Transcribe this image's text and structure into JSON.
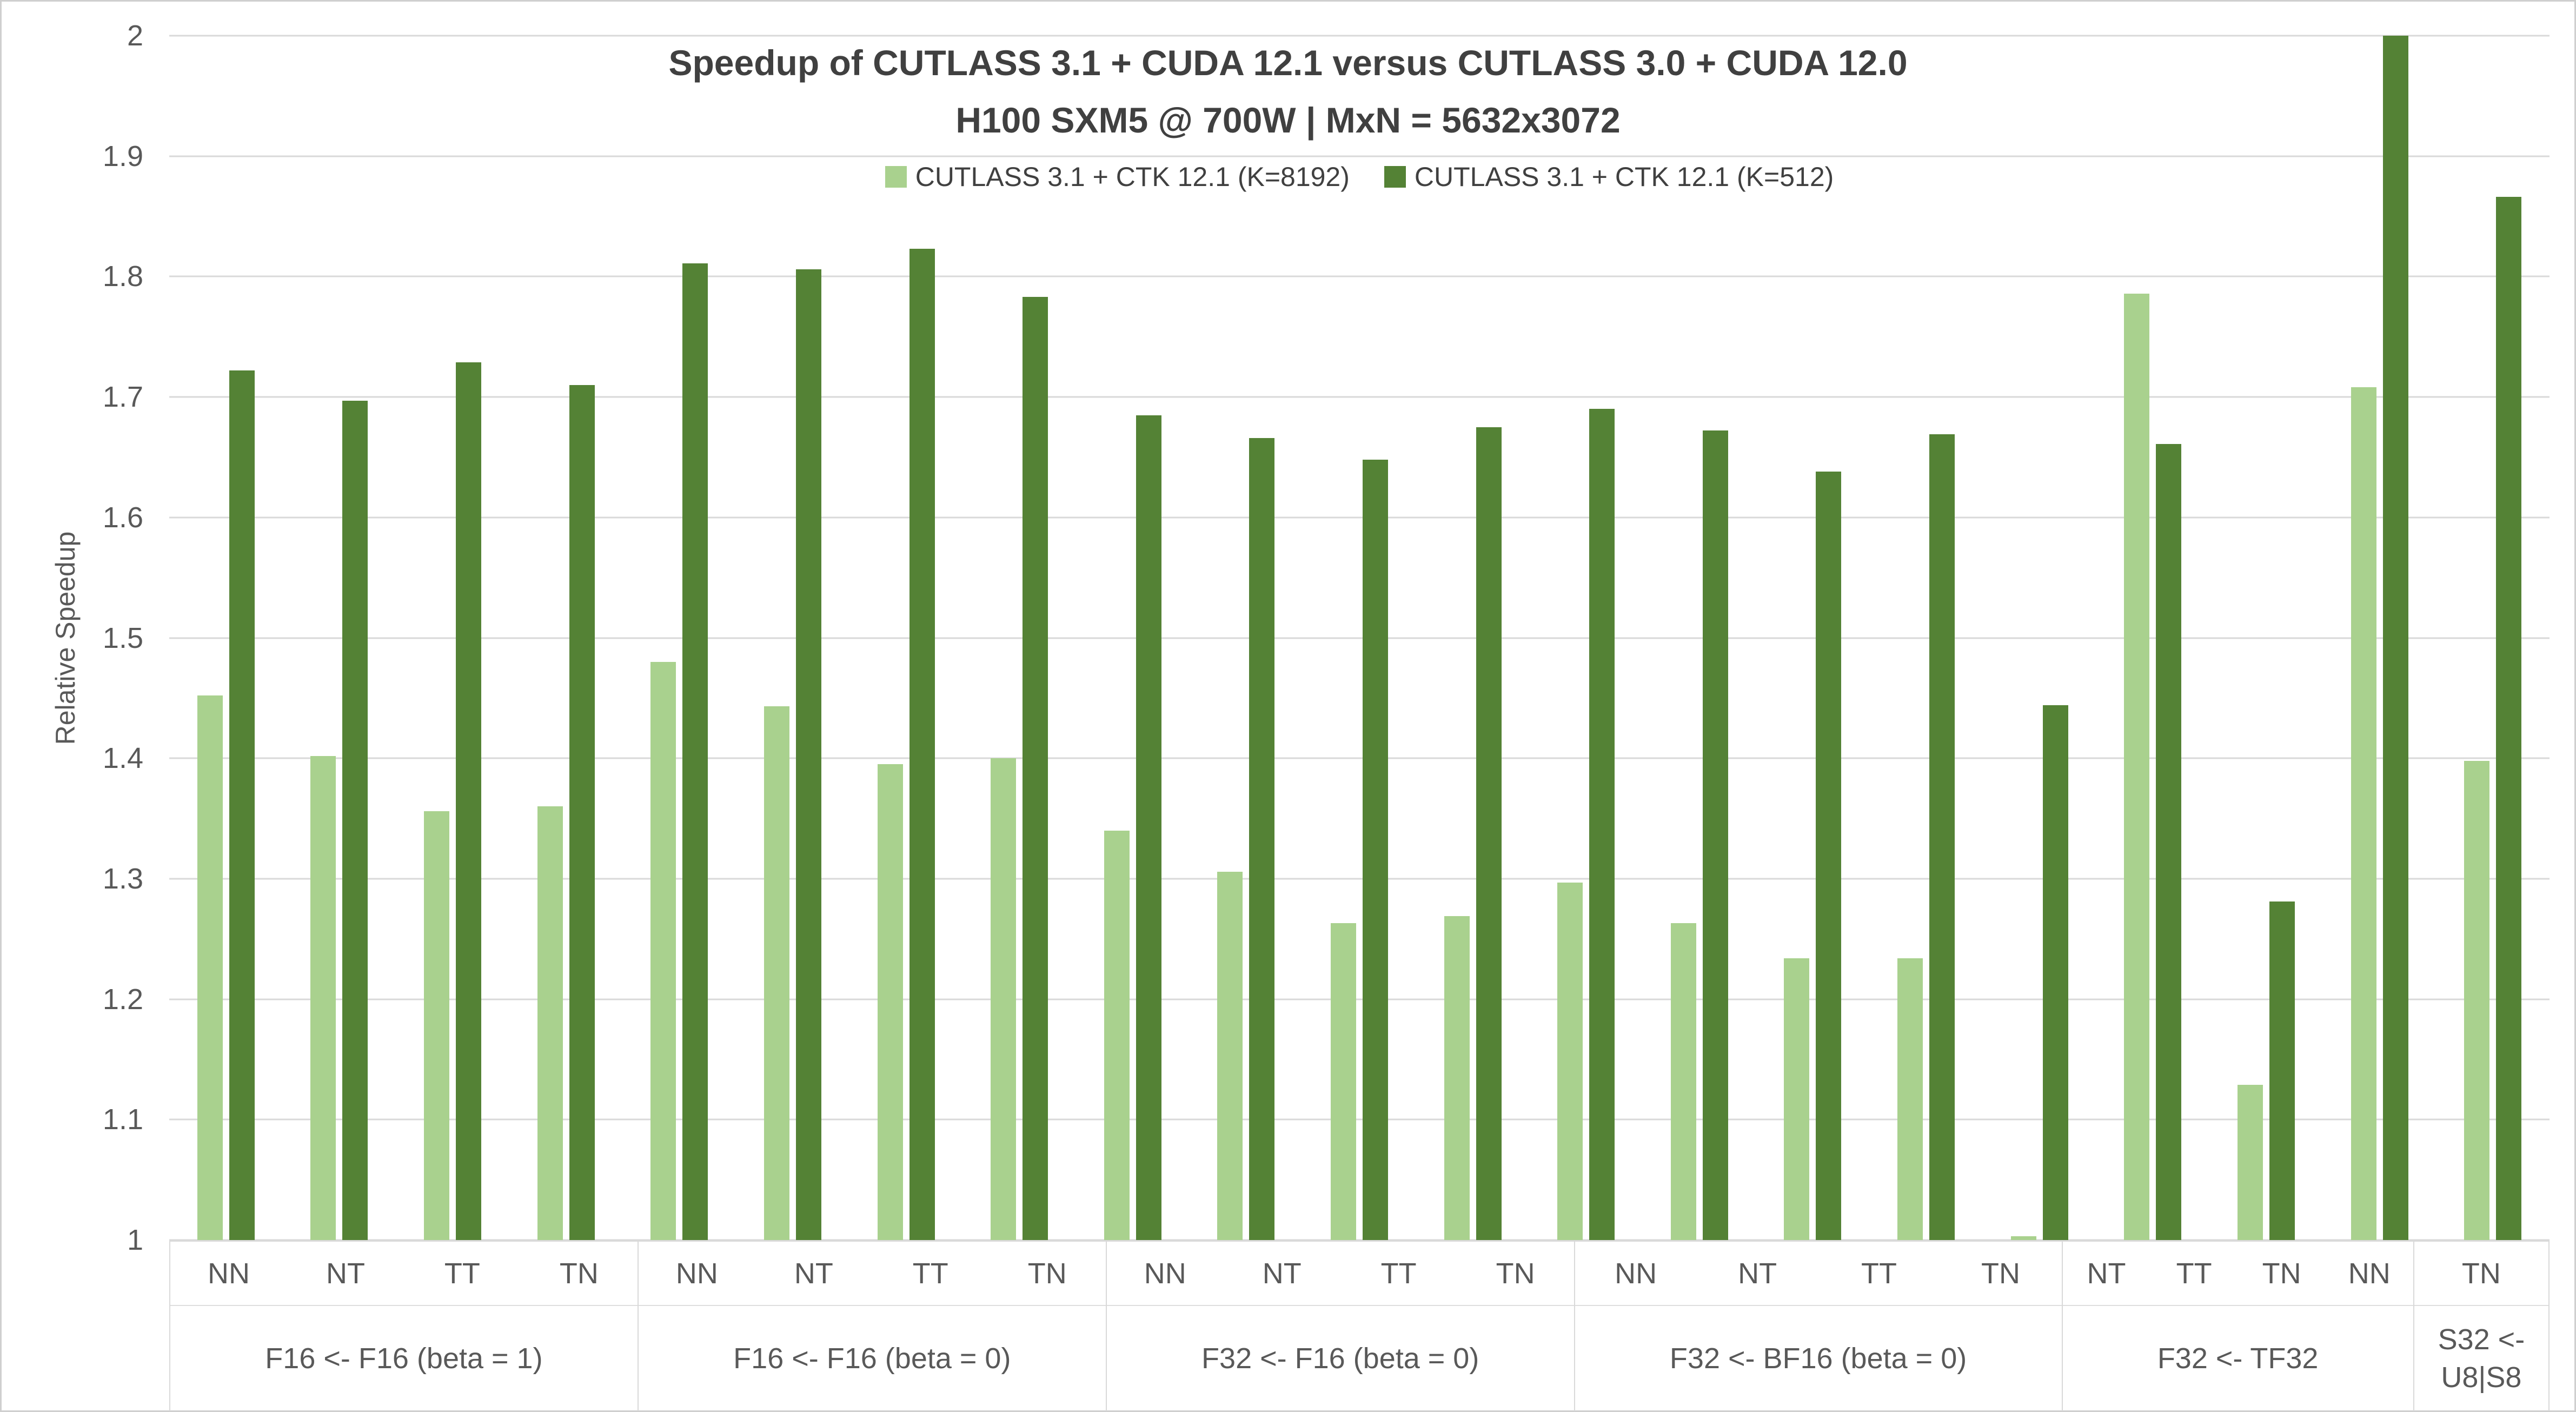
{
  "title": "Speedup of CUTLASS 3.1 + CUDA 12.1 versus CUTLASS 3.0 + CUDA 12.0",
  "subtitle": "H100 SXM5 @ 700W | MxN = 5632x3072",
  "colors": {
    "light_series": "#A9D18E",
    "dark_series": "#548235",
    "gridline": "#D9D9D9",
    "axis_text": "#595959",
    "title_text": "#404040"
  },
  "chart_data": {
    "type": "bar",
    "title": "Speedup of CUTLASS 3.1 + CUDA 12.1 versus CUTLASS 3.0 + CUDA 12.0",
    "subtitle": "H100 SXM5 @ 700W | MxN = 5632x3072",
    "ylabel": "Relative Speedup",
    "ylim": [
      1,
      2
    ],
    "grid": true,
    "legend_position": "top-inside",
    "yticks": [
      {
        "value": 2.0,
        "label": "2"
      },
      {
        "value": 1.9,
        "label": "1.9"
      },
      {
        "value": 1.8,
        "label": "1.8"
      },
      {
        "value": 1.7,
        "label": "1.7"
      },
      {
        "value": 1.6,
        "label": "1.6"
      },
      {
        "value": 1.5,
        "label": "1.5"
      },
      {
        "value": 1.4,
        "label": "1.4"
      },
      {
        "value": 1.3,
        "label": "1.3"
      },
      {
        "value": 1.2,
        "label": "1.2"
      },
      {
        "value": 1.1,
        "label": "1.1"
      },
      {
        "value": 1.0,
        "label": "1"
      }
    ],
    "series": [
      {
        "name": "CUTLASS 3.1 + CTK 12.1 (K=8192)",
        "key": "k8192",
        "color": "#A9D18E"
      },
      {
        "name": "CUTLASS 3.1 + CTK 12.1 (K=512)",
        "key": "k512",
        "color": "#548235"
      }
    ],
    "groups": [
      {
        "label_lines": [
          "F16 <- F16 (beta = 1)"
        ],
        "bars": [
          {
            "cat": "NN",
            "k8192": 1.452,
            "k512": 1.722
          },
          {
            "cat": "NT",
            "k8192": 1.402,
            "k512": 1.697
          },
          {
            "cat": "TT",
            "k8192": 1.356,
            "k512": 1.729
          },
          {
            "cat": "TN",
            "k8192": 1.36,
            "k512": 1.71
          }
        ]
      },
      {
        "label_lines": [
          "F16 <- F16 (beta = 0)"
        ],
        "bars": [
          {
            "cat": "NN",
            "k8192": 1.48,
            "k512": 1.811
          },
          {
            "cat": "NT",
            "k8192": 1.443,
            "k512": 1.806
          },
          {
            "cat": "TT",
            "k8192": 1.395,
            "k512": 1.823
          },
          {
            "cat": "TN",
            "k8192": 1.4,
            "k512": 1.783
          }
        ]
      },
      {
        "label_lines": [
          "F32 <- F16 (beta = 0)"
        ],
        "bars": [
          {
            "cat": "NN",
            "k8192": 1.34,
            "k512": 1.685
          },
          {
            "cat": "NT",
            "k8192": 1.306,
            "k512": 1.666
          },
          {
            "cat": "TT",
            "k8192": 1.263,
            "k512": 1.648
          },
          {
            "cat": "TN",
            "k8192": 1.269,
            "k512": 1.675
          }
        ]
      },
      {
        "label_lines": [
          "F32 <- BF16 (beta = 0)"
        ],
        "bars": [
          {
            "cat": "NN",
            "k8192": 1.297,
            "k512": 1.69
          },
          {
            "cat": "NT",
            "k8192": 1.263,
            "k512": 1.672
          },
          {
            "cat": "TT",
            "k8192": 1.234,
            "k512": 1.638
          },
          {
            "cat": "TN",
            "k8192": 1.234,
            "k512": 1.669
          }
        ]
      },
      {
        "label_lines": [
          "F32 <- TF32"
        ],
        "bars": [
          {
            "cat": "NT",
            "k8192": 1.003,
            "k512": 1.444
          },
          {
            "cat": "TT",
            "k8192": 1.786,
            "k512": 1.661
          },
          {
            "cat": "TN",
            "k8192": 1.129,
            "k512": 1.281
          },
          {
            "cat": "NN",
            "k8192": 1.708,
            "k512": 2.0
          }
        ]
      },
      {
        "label_lines": [
          "S32 <-",
          "U8|S8"
        ],
        "bars": [
          {
            "cat": "TN",
            "k8192": 1.398,
            "k512": 1.866
          }
        ]
      }
    ]
  }
}
